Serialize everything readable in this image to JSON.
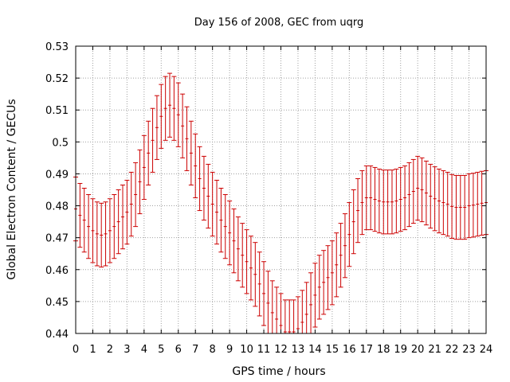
{
  "chart_data": {
    "type": "line",
    "title": "Day 156 of 2008, GEC from uqrg",
    "xlabel": "GPS time / hours",
    "ylabel": "Global Electron Content / GECUs",
    "xlim": [
      0,
      24
    ],
    "ylim": [
      0.44,
      0.53
    ],
    "x_ticks": [
      "0",
      "1",
      "2",
      "3",
      "4",
      "5",
      "6",
      "7",
      "8",
      "9",
      "10",
      "11",
      "12",
      "13",
      "14",
      "15",
      "16",
      "17",
      "18",
      "19",
      "20",
      "21",
      "22",
      "23",
      "24"
    ],
    "y_ticks": [
      "0.44",
      "0.45",
      "0.46",
      "0.47",
      "0.48",
      "0.49",
      "0.5",
      "0.51",
      "0.52",
      "0.53"
    ],
    "grid": true,
    "error_bar_half_width": 0.01,
    "colors": {
      "series": "#cc0000",
      "grid": "#a0a0a0",
      "axis": "#000000"
    },
    "series": [
      {
        "x": [
          0,
          0.25,
          0.5,
          0.75,
          1,
          1.25,
          1.5,
          1.75,
          2,
          2.25,
          2.5,
          2.75,
          3,
          3.25,
          3.5,
          3.75,
          4,
          4.25,
          4.5,
          4.75,
          5,
          5.25,
          5.5,
          5.75,
          6,
          6.25,
          6.5,
          6.75,
          7,
          7.25,
          7.5,
          7.75,
          8,
          8.25,
          8.5,
          8.75,
          9,
          9.25,
          9.5,
          9.75,
          10,
          10.25,
          10.5,
          10.75,
          11,
          11.25,
          11.5,
          11.75,
          12,
          12.25,
          12.5,
          12.75,
          13,
          13.25,
          13.5,
          13.75,
          14,
          14.25,
          14.5,
          14.75,
          15,
          15.25,
          15.5,
          15.75,
          16,
          16.25,
          16.5,
          16.75,
          17,
          17.25,
          17.5,
          17.75,
          18,
          18.25,
          18.5,
          18.75,
          19,
          19.25,
          19.5,
          19.75,
          20,
          20.25,
          20.5,
          20.75,
          21,
          21.25,
          21.5,
          21.75,
          22,
          22.25,
          22.5,
          22.75,
          23,
          23.25,
          23.5,
          23.75,
          24
        ],
        "y": [
          0.479,
          0.477,
          0.4755,
          0.4735,
          0.4722,
          0.4712,
          0.4708,
          0.4712,
          0.4722,
          0.4735,
          0.475,
          0.4765,
          0.478,
          0.4805,
          0.4835,
          0.4875,
          0.492,
          0.4965,
          0.5005,
          0.5045,
          0.508,
          0.5105,
          0.5115,
          0.5105,
          0.5085,
          0.505,
          0.501,
          0.4965,
          0.4925,
          0.4885,
          0.4855,
          0.483,
          0.4805,
          0.478,
          0.4755,
          0.4735,
          0.4715,
          0.469,
          0.4665,
          0.4645,
          0.4625,
          0.4605,
          0.4585,
          0.4555,
          0.4525,
          0.4495,
          0.4465,
          0.4445,
          0.4425,
          0.4405,
          0.4405,
          0.4405,
          0.4415,
          0.4435,
          0.446,
          0.449,
          0.452,
          0.4545,
          0.456,
          0.4575,
          0.459,
          0.4615,
          0.4645,
          0.4675,
          0.471,
          0.475,
          0.4785,
          0.481,
          0.4825,
          0.4825,
          0.482,
          0.4815,
          0.4812,
          0.4812,
          0.4812,
          0.4815,
          0.482,
          0.4825,
          0.4835,
          0.4845,
          0.4855,
          0.485,
          0.484,
          0.483,
          0.4822,
          0.4815,
          0.481,
          0.4805,
          0.4798,
          0.4795,
          0.4795,
          0.4795,
          0.48,
          0.4802,
          0.4805,
          0.4808,
          0.481
        ]
      }
    ]
  }
}
